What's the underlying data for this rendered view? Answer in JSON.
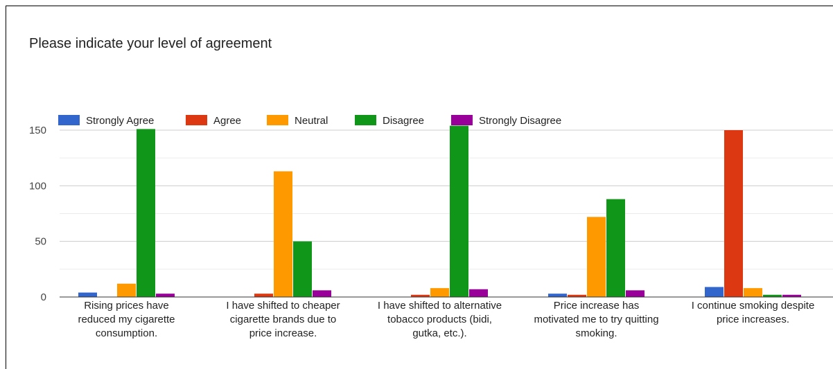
{
  "chart_data": {
    "type": "bar",
    "title": "Please indicate your level of agreement",
    "categories": [
      [
        "Rising prices have",
        "reduced my cigarette",
        "consumption."
      ],
      [
        "I have shifted to cheaper",
        "cigarette brands due to",
        "price increase."
      ],
      [
        "I have shifted to alternative",
        "tobacco products (bidi,",
        "gutka, etc.)."
      ],
      [
        "Price increase has",
        "motivated me to try quitting",
        "smoking."
      ],
      [
        "I continue smoking despite",
        "price increases."
      ]
    ],
    "series": [
      {
        "name": "Strongly Agree",
        "color": "#3366cc",
        "values": [
          4,
          0,
          0,
          3,
          9
        ]
      },
      {
        "name": "Agree",
        "color": "#dc3912",
        "values": [
          0,
          3,
          2,
          2,
          150
        ]
      },
      {
        "name": "Neutral",
        "color": "#ff9900",
        "values": [
          12,
          113,
          8,
          72,
          8
        ]
      },
      {
        "name": "Disagree",
        "color": "#109618",
        "values": [
          151,
          50,
          154,
          88,
          2
        ]
      },
      {
        "name": "Strongly Disagree",
        "color": "#990099",
        "values": [
          3,
          6,
          7,
          6,
          2
        ]
      }
    ],
    "yticks": [
      0,
      50,
      100,
      150
    ],
    "ylim": [
      0,
      150
    ],
    "grid": true,
    "legend": "top-left"
  }
}
